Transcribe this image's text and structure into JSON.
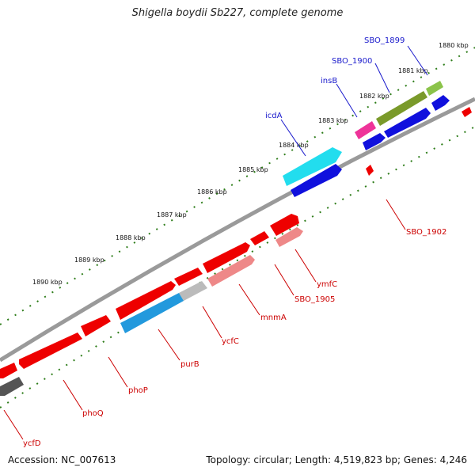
{
  "title": "Shigella boydii Sb227, complete genome",
  "footer": {
    "accession": "Accession: NC_007613",
    "summary": "Topology: circular; Length: 4,519,823 bp; Genes: 4,246"
  },
  "colors": {
    "backbone": "#8a8a8a",
    "tick": "#2e7d1a",
    "forward_label": "#1a1acc",
    "reverse_label": "#cc0000"
  },
  "kbp_labels": [
    "1880 kbp",
    "1881 kbp",
    "1882 kbp",
    "1883 kbp",
    "1884 kbp",
    "1885 kbp",
    "1886 kbp",
    "1887 kbp",
    "1888 kbp",
    "1889 kbp",
    "1890 kbp"
  ],
  "gene_labels": {
    "forward": [
      "SBO_1899",
      "SBO_1900",
      "insB",
      "icdA"
    ],
    "reverse": [
      "SBO_1902",
      "ymfC",
      "SBO_1905",
      "mnmA",
      "ycfC",
      "purB",
      "phoP",
      "phoQ",
      "ycfD"
    ]
  }
}
